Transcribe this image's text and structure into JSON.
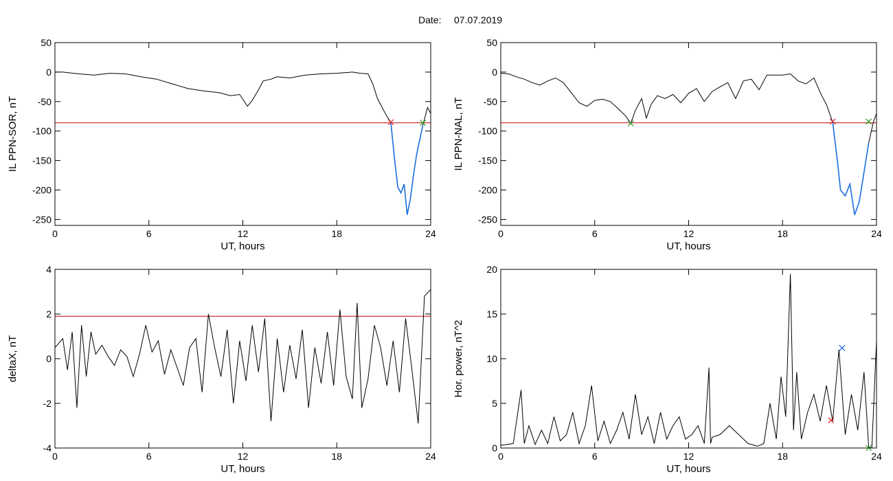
{
  "header": {
    "date_label": "Date:",
    "date_value": "07.07.2019"
  },
  "colors": {
    "trace": "#000000",
    "threshold": "#c00000",
    "segment": "#1a6fe0",
    "start_marker": "#e02020",
    "end_marker": "#2a9a2a",
    "peak_marker": "#1a5fd0"
  },
  "chart_data": [
    {
      "type": "line",
      "ylabel": "IL PPN-SOR, nT",
      "xlabel": "UT, hours",
      "xlim": [
        0,
        24
      ],
      "ylim": [
        -260,
        50
      ],
      "xticks": [
        0,
        6,
        12,
        18,
        24
      ],
      "yticks": [
        50,
        0,
        -50,
        -100,
        -150,
        -200,
        -250
      ],
      "threshold": -86,
      "series": [
        {
          "x": [
            0,
            0.5,
            1.5,
            2.5,
            3.5,
            4.5,
            5.5,
            6.5,
            7.5,
            8.5,
            9.5,
            10.5,
            11.2,
            11.8,
            12.3,
            12.6,
            13,
            13.3,
            13.8,
            14.2,
            15,
            16,
            17,
            18,
            18.5,
            19,
            19.5,
            20,
            20.3,
            20.6,
            20.9,
            21.2,
            21.45,
            21.7,
            21.9,
            22.1,
            22.3,
            22.5,
            22.7,
            22.9,
            23.1,
            23.3,
            23.5,
            23.8,
            24
          ],
          "y": [
            0,
            0,
            -3,
            -5,
            -2,
            -3,
            -8,
            -12,
            -20,
            -28,
            -32,
            -35,
            -40,
            -38,
            -58,
            -48,
            -30,
            -15,
            -12,
            -8,
            -10,
            -5,
            -3,
            -2,
            -1,
            0,
            -2,
            -3,
            -20,
            -45,
            -60,
            -75,
            -85,
            -150,
            -195,
            -205,
            -190,
            -242,
            -215,
            -175,
            -140,
            -115,
            -90,
            -60,
            -70
          ]
        }
      ],
      "highlight": {
        "x": [
          21.45,
          21.7,
          21.9,
          22.1,
          22.3,
          22.5,
          22.7,
          22.9,
          23.1,
          23.3,
          23.5
        ],
        "y": [
          -85,
          -150,
          -195,
          -205,
          -190,
          -242,
          -215,
          -175,
          -140,
          -115,
          -90
        ]
      },
      "markers": [
        {
          "x": 21.45,
          "y": -85,
          "kind": "start"
        },
        {
          "x": 23.5,
          "y": -86,
          "kind": "end"
        }
      ]
    },
    {
      "type": "line",
      "ylabel": "IL PPN-NAL, nT",
      "xlabel": "UT, hours",
      "xlim": [
        0,
        24
      ],
      "ylim": [
        -260,
        50
      ],
      "xticks": [
        0,
        6,
        12,
        18,
        24
      ],
      "yticks": [
        50,
        0,
        -50,
        -100,
        -150,
        -200,
        -250
      ],
      "threshold": -86,
      "series": [
        {
          "x": [
            0,
            0.5,
            1,
            1.5,
            2,
            2.5,
            3,
            3.5,
            4,
            4.5,
            5,
            5.5,
            6,
            6.5,
            7,
            7.5,
            8,
            8.3,
            8.6,
            9,
            9.3,
            9.6,
            10,
            10.5,
            11,
            11.5,
            12,
            12.5,
            13,
            13.5,
            14,
            14.5,
            15,
            15.5,
            16,
            16.5,
            17,
            17.5,
            18,
            18.5,
            19,
            19.5,
            20,
            20.5,
            20.8,
            21.2,
            21.5,
            21.7,
            22,
            22.3,
            22.6,
            22.9,
            23.2,
            23.5,
            23.8,
            24
          ],
          "y": [
            -2,
            -3,
            -8,
            -12,
            -18,
            -22,
            -15,
            -10,
            -18,
            -35,
            -52,
            -58,
            -48,
            -46,
            -50,
            -62,
            -75,
            -87,
            -65,
            -45,
            -78,
            -55,
            -40,
            -45,
            -38,
            -52,
            -36,
            -28,
            -50,
            -33,
            -25,
            -18,
            -45,
            -15,
            -12,
            -30,
            -5,
            -5,
            -5,
            -3,
            -15,
            -20,
            -10,
            -40,
            -55,
            -85,
            -150,
            -200,
            -210,
            -190,
            -242,
            -220,
            -170,
            -120,
            -85,
            -70
          ]
        }
      ],
      "highlight": {
        "x": [
          21.2,
          21.5,
          21.7,
          22,
          22.3,
          22.6,
          22.9,
          23.2,
          23.5
        ],
        "y": [
          -85,
          -150,
          -200,
          -210,
          -190,
          -242,
          -220,
          -170,
          -120
        ]
      },
      "markers": [
        {
          "x": 21.2,
          "y": -84,
          "kind": "start"
        },
        {
          "x": 8.3,
          "y": -87,
          "kind": "end"
        },
        {
          "x": 23.5,
          "y": -84,
          "kind": "end"
        }
      ]
    },
    {
      "type": "line",
      "ylabel": "deltaX, nT",
      "xlabel": "UT, hours",
      "xlim": [
        0,
        24
      ],
      "ylim": [
        -4,
        4
      ],
      "xticks": [
        0,
        6,
        12,
        18,
        24
      ],
      "yticks": [
        4,
        2,
        0,
        -2,
        -4
      ],
      "threshold": 1.9,
      "series": [
        {
          "x": [
            0,
            0.5,
            0.8,
            1.1,
            1.4,
            1.7,
            2,
            2.3,
            2.6,
            3,
            3.4,
            3.8,
            4.2,
            4.6,
            5,
            5.4,
            5.8,
            6.2,
            6.6,
            7,
            7.4,
            7.8,
            8.2,
            8.6,
            9,
            9.4,
            9.8,
            10.2,
            10.6,
            11,
            11.4,
            11.8,
            12.2,
            12.6,
            13,
            13.4,
            13.8,
            14.2,
            14.6,
            15,
            15.4,
            15.8,
            16.2,
            16.6,
            17,
            17.4,
            17.8,
            18.2,
            18.6,
            19,
            19.3,
            19.6,
            20,
            20.4,
            20.8,
            21.2,
            21.6,
            22,
            22.4,
            22.8,
            23.2,
            23.6,
            24
          ],
          "y": [
            0.5,
            0.9,
            -0.5,
            1.2,
            -2.2,
            1.5,
            -0.8,
            1.2,
            0.2,
            0.6,
            0.1,
            -0.3,
            0.4,
            0.1,
            -0.8,
            0.2,
            1.5,
            0.3,
            0.8,
            -0.7,
            0.4,
            -0.4,
            -1.2,
            0.5,
            0.9,
            -1.5,
            2.0,
            0.5,
            -0.8,
            1.3,
            -2.0,
            0.8,
            -1.0,
            1.5,
            -0.6,
            1.8,
            -2.8,
            0.9,
            -1.5,
            0.6,
            -0.9,
            1.3,
            -2.2,
            0.5,
            -1.1,
            1.2,
            -1.2,
            2.2,
            -0.8,
            -1.8,
            2.5,
            -2.2,
            -0.9,
            1.5,
            0.5,
            -1.2,
            0.8,
            -1.5,
            1.8,
            -0.5,
            -2.9,
            2.8,
            3.1
          ]
        }
      ]
    },
    {
      "type": "line",
      "ylabel": "Hor. power, nT^2",
      "xlabel": "UT, hours",
      "xlim": [
        0,
        24
      ],
      "ylim": [
        0,
        20
      ],
      "xticks": [
        0,
        6,
        12,
        18,
        24
      ],
      "yticks": [
        20,
        15,
        10,
        5,
        0
      ],
      "series": [
        {
          "x": [
            0,
            0.8,
            1.3,
            1.5,
            1.8,
            2.2,
            2.6,
            3,
            3.4,
            3.8,
            4.2,
            4.6,
            5,
            5.4,
            5.8,
            6.2,
            6.6,
            7,
            7.4,
            7.8,
            8.2,
            8.6,
            9,
            9.4,
            9.8,
            10.2,
            10.6,
            11,
            11.4,
            11.8,
            12.2,
            12.6,
            13,
            13.3,
            13.4,
            13.5,
            14,
            14.6,
            15.2,
            15.8,
            16.4,
            16.8,
            17.2,
            17.6,
            17.9,
            18.2,
            18.5,
            18.7,
            18.9,
            19.2,
            19.6,
            20,
            20.4,
            20.8,
            21.2,
            21.6,
            22,
            22.4,
            22.8,
            23.2,
            23.5,
            23.7,
            24
          ],
          "y": [
            0.3,
            0.5,
            6.5,
            0.5,
            2.5,
            0.4,
            2.0,
            0.5,
            3.5,
            0.8,
            1.5,
            4.0,
            0.5,
            2.5,
            7.0,
            0.8,
            3.0,
            0.5,
            2.0,
            4.0,
            1.0,
            6.0,
            1.5,
            3.5,
            0.5,
            4.0,
            1.0,
            2.5,
            3.5,
            1.0,
            1.5,
            2.5,
            0.5,
            9.0,
            0.5,
            1.2,
            1.5,
            2.5,
            1.5,
            0.5,
            0.2,
            0.5,
            5.0,
            1.0,
            8.0,
            3.5,
            19.5,
            2.0,
            8.5,
            1.0,
            4.0,
            6.0,
            3.0,
            7.0,
            3.0,
            11.0,
            1.5,
            6.0,
            2.0,
            8.5,
            0.1,
            0.0,
            12.0
          ]
        }
      ],
      "markers": [
        {
          "x": 21.1,
          "y": 3.1,
          "kind": "start"
        },
        {
          "x": 21.8,
          "y": 11.2,
          "kind": "peak"
        },
        {
          "x": 23.5,
          "y": 0.0,
          "kind": "end"
        }
      ]
    }
  ]
}
